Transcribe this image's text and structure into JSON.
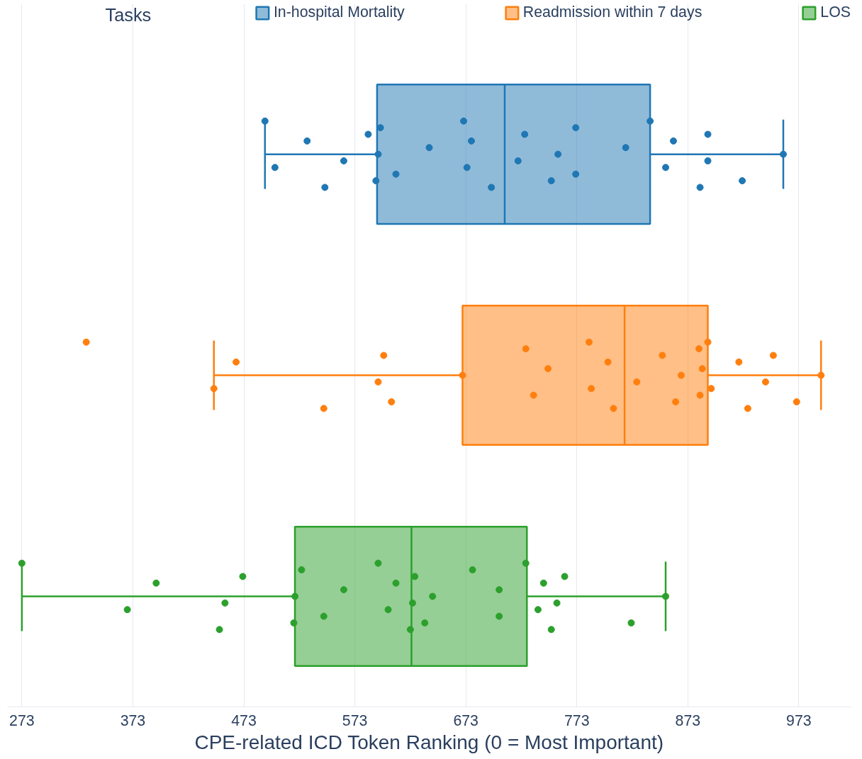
{
  "chart_data": {
    "type": "box",
    "orientation": "horizontal",
    "xlabel": "CPE-related ICD Token Ranking (0 = Most Important)",
    "legend_title": "Tasks",
    "legend": "top",
    "grid": "x",
    "tick_labels": "x",
    "categories": [
      null,
      null,
      null
    ],
    "xlim": [
      260,
      1020
    ],
    "xticks": [
      273,
      373,
      473,
      573,
      673,
      773,
      873,
      973
    ],
    "series": [
      {
        "name": "In-hospital Mortality",
        "color": "#1f77b4",
        "boxes": [
          {
            "low": 492,
            "q1": 593,
            "median": 708,
            "q3": 839,
            "high": 959,
            "outliers": [
              492,
              501,
              530,
              546,
              563,
              585,
              592,
              594,
              596,
              610,
              640,
              671,
              674,
              678,
              696,
              720,
              726,
              750,
              756,
              772,
              772,
              817,
              839,
              853,
              860,
              884,
              891,
              891,
              922,
              959
            ]
          },
          null,
          null
        ]
      },
      {
        "name": "Readmission within 7 days",
        "color": "#ff7f0e",
        "boxes": [
          null,
          {
            "low": 446,
            "q1": 670,
            "median": 816,
            "q3": 891,
            "high": 993,
            "outliers": [
              331,
              446,
              466,
              545,
              594,
              599,
              606,
              670,
              727,
              734,
              747,
              784,
              786,
              801,
              806,
              827,
              850,
              862,
              867,
              883,
              884,
              886,
              891,
              894,
              919,
              927,
              943,
              950,
              971,
              993
            ]
          },
          null
        ]
      },
      {
        "name": "LOS",
        "color": "#2ca02c",
        "boxes": [
          null,
          null,
          {
            "low": 273,
            "q1": 519,
            "median": 624,
            "q3": 728,
            "high": 853,
            "outliers": [
              273,
              368,
              394,
              451,
              456,
              472,
              518,
              519,
              525,
              545,
              563,
              594,
              603,
              610,
              623,
              625,
              627,
              636,
              643,
              679,
              703,
              703,
              727,
              738,
              743,
              750,
              755,
              762,
              822,
              853
            ]
          }
        ]
      }
    ]
  }
}
